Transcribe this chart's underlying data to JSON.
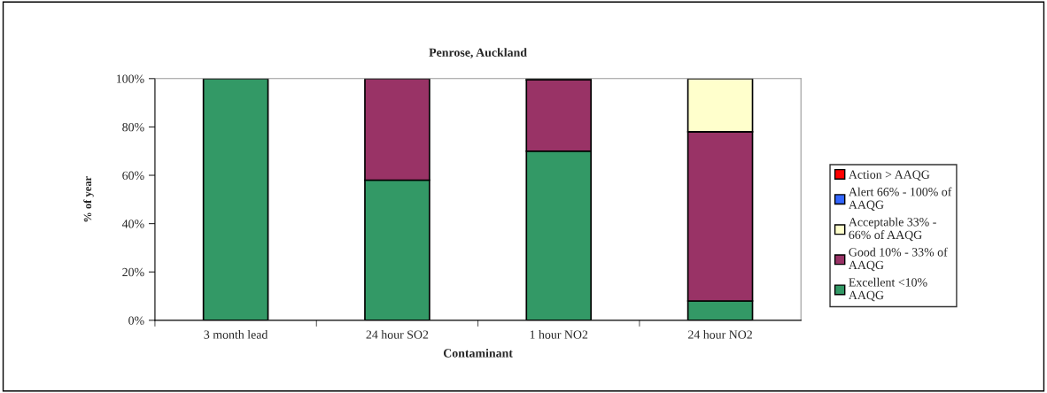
{
  "chart_data": {
    "type": "bar",
    "title": "Penrose, Auckland",
    "xlabel": "Contaminant",
    "ylabel": "% of year",
    "categories": [
      "3 month lead",
      "24 hour SO2",
      "1 hour NO2",
      "24 hour NO2"
    ],
    "stacked": true,
    "series": [
      {
        "name": "Excellent <10%\nAAQG",
        "color": "#339966",
        "values": [
          100,
          58,
          70,
          8
        ]
      },
      {
        "name": "Good 10% - 33% of\nAAQG",
        "color": "#993366",
        "values": [
          null,
          42,
          29.5,
          70
        ]
      },
      {
        "name": "Acceptable 33% -\n66% of AAQG",
        "color": "#ffffcc",
        "values": [
          null,
          null,
          0.5,
          22
        ]
      },
      {
        "name": "Alert 66% - 100% of\nAAQG",
        "color": "#3366ff",
        "values": [
          null,
          null,
          null,
          null
        ]
      },
      {
        "name": "Action > AAQG",
        "color": "#ff0000",
        "values": [
          null,
          null,
          null,
          null
        ]
      }
    ],
    "ylim": [
      0,
      100
    ],
    "yticks": [
      {
        "value": 0,
        "label": "0%"
      },
      {
        "value": 20,
        "label": "20%"
      },
      {
        "value": 40,
        "label": "40%"
      },
      {
        "value": 60,
        "label": "60%"
      },
      {
        "value": 80,
        "label": "80%"
      },
      {
        "value": 100,
        "label": "100%"
      }
    ],
    "grid": false,
    "legend": "right"
  }
}
